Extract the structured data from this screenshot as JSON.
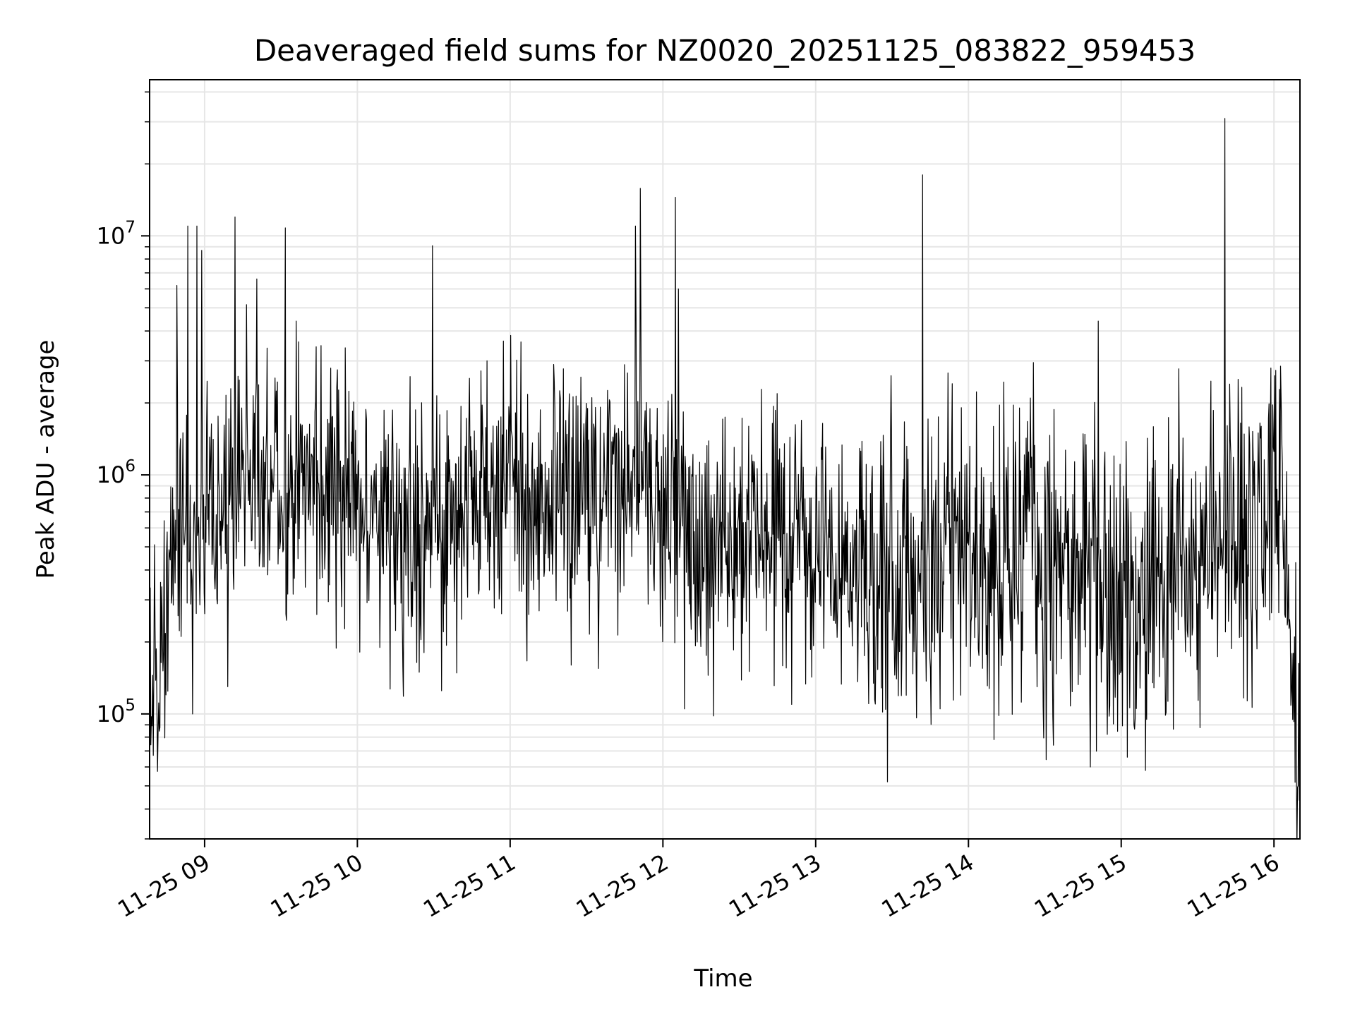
{
  "chart_data": {
    "type": "line",
    "title": "Deaveraged field sums for NZ0020_20251125_083822_959453",
    "xlabel": "Time",
    "ylabel": "Peak ADU - average",
    "yscale": "log",
    "ylim": [
      30000,
      45000000
    ],
    "xlim_hours": [
      8.64,
      16.17
    ],
    "x_ticks": [
      {
        "hour": 9,
        "label": "11-25 09"
      },
      {
        "hour": 10,
        "label": "11-25 10"
      },
      {
        "hour": 11,
        "label": "11-25 11"
      },
      {
        "hour": 12,
        "label": "11-25 12"
      },
      {
        "hour": 13,
        "label": "11-25 13"
      },
      {
        "hour": 14,
        "label": "11-25 14"
      },
      {
        "hour": 15,
        "label": "11-25 15"
      },
      {
        "hour": 16,
        "label": "11-25 16"
      }
    ],
    "y_ticks": [
      {
        "value": 100000,
        "base": "10",
        "exp": "5"
      },
      {
        "value": 1000000,
        "base": "10",
        "exp": "6"
      },
      {
        "value": 10000000,
        "base": "10",
        "exp": "7"
      }
    ],
    "grid": true,
    "line_color": "#000000",
    "baseline_profile": [
      {
        "hour": 8.64,
        "value": 100000
      },
      {
        "hour": 8.74,
        "value": 200000
      },
      {
        "hour": 8.8,
        "value": 650000
      },
      {
        "hour": 9.1,
        "value": 800000
      },
      {
        "hour": 9.5,
        "value": 950000
      },
      {
        "hour": 9.9,
        "value": 800000
      },
      {
        "hour": 10.3,
        "value": 550000
      },
      {
        "hour": 10.6,
        "value": 600000
      },
      {
        "hour": 10.9,
        "value": 900000
      },
      {
        "hour": 11.3,
        "value": 800000
      },
      {
        "hour": 11.8,
        "value": 900000
      },
      {
        "hour": 12.2,
        "value": 550000
      },
      {
        "hour": 12.8,
        "value": 500000
      },
      {
        "hour": 13.2,
        "value": 420000
      },
      {
        "hour": 13.6,
        "value": 330000
      },
      {
        "hour": 14.0,
        "value": 480000
      },
      {
        "hour": 14.5,
        "value": 450000
      },
      {
        "hour": 14.9,
        "value": 330000
      },
      {
        "hour": 15.5,
        "value": 400000
      },
      {
        "hour": 15.8,
        "value": 450000
      },
      {
        "hour": 16.05,
        "value": 800000
      },
      {
        "hour": 16.1,
        "value": 250000
      },
      {
        "hour": 16.17,
        "value": 75000
      }
    ],
    "spikes": [
      {
        "hour": 8.82,
        "value": 6200000
      },
      {
        "hour": 8.86,
        "value": 1500000
      },
      {
        "hour": 8.89,
        "value": 11000000
      },
      {
        "hour": 8.92,
        "value": 100000
      },
      {
        "hour": 8.95,
        "value": 11000000
      },
      {
        "hour": 8.98,
        "value": 8700000
      },
      {
        "hour": 9.15,
        "value": 130000
      },
      {
        "hour": 9.2,
        "value": 12000000
      },
      {
        "hour": 9.34,
        "value": 6600000
      },
      {
        "hour": 9.53,
        "value": 10800000
      },
      {
        "hour": 9.6,
        "value": 4400000
      },
      {
        "hour": 9.92,
        "value": 3400000
      },
      {
        "hour": 10.49,
        "value": 9100000
      },
      {
        "hour": 10.55,
        "value": 125000
      },
      {
        "hour": 10.85,
        "value": 3000000
      },
      {
        "hour": 11.07,
        "value": 3600000
      },
      {
        "hour": 11.4,
        "value": 160000
      },
      {
        "hour": 11.58,
        "value": 155000
      },
      {
        "hour": 11.82,
        "value": 11000000
      },
      {
        "hour": 11.85,
        "value": 15800000
      },
      {
        "hour": 12.08,
        "value": 14500000
      },
      {
        "hour": 12.1,
        "value": 6000000
      },
      {
        "hour": 12.14,
        "value": 105000
      },
      {
        "hour": 12.33,
        "value": 98000
      },
      {
        "hour": 13.47,
        "value": 52000
      },
      {
        "hour": 13.7,
        "value": 18000000
      },
      {
        "hour": 14.8,
        "value": 60000
      },
      {
        "hour": 14.85,
        "value": 4400000
      },
      {
        "hour": 15.16,
        "value": 58000
      },
      {
        "hour": 15.68,
        "value": 31000000
      },
      {
        "hour": 15.98,
        "value": 2800000
      },
      {
        "hour": 16.16,
        "value": 50000
      }
    ]
  }
}
